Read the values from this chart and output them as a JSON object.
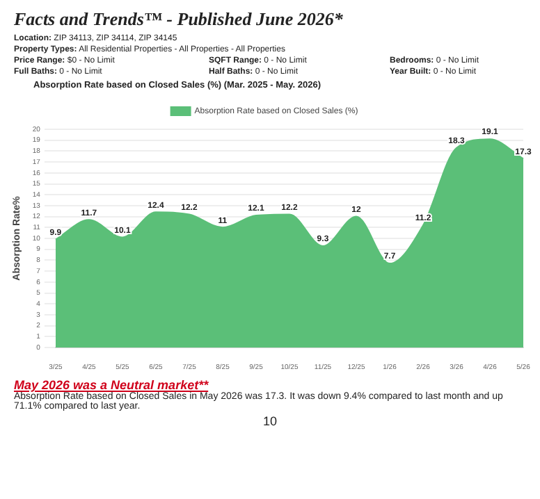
{
  "chart_data": {
    "type": "area",
    "title": "Facts and Trends™ - Published June 2026*",
    "subtitle": "Absorption Rate based on Closed Sales (%) (Mar. 2025 - May. 2026)",
    "ylabel": "Absorption Rate%",
    "annotations": [
      "Location: ZIP 34113, ZIP 34114, ZIP 34145",
      "Property Types: All Residential Properties - All Properties - All Properties",
      "Price Range: $0 - No Limit",
      "SQFT Range: 0 - No Limit",
      "Bedrooms: 0 - No Limit",
      "Full Baths: 0 - No Limit",
      "Half Baths: 0 - No Limit",
      "Year Built: 0 - No Limit",
      "May 2026 was a Neutral market**",
      "Absorption Rate based on Closed Sales in May 2026 was 17.3. It was down 9.4% compared to last month and up 71.1% compared to last year.",
      "10"
    ],
    "categories": [
      "3/25",
      "4/25",
      "5/25",
      "6/25",
      "7/25",
      "8/25",
      "9/25",
      "10/25",
      "11/25",
      "12/25",
      "1/26",
      "2/26",
      "3/26",
      "4/26",
      "5/26"
    ],
    "series": [
      {
        "name": "Absorption Rate based on Closed Sales (%)",
        "color": "#5bbf78",
        "values": [
          9.9,
          11.7,
          10.1,
          12.4,
          12.2,
          11,
          12.1,
          12.2,
          9.3,
          12,
          7.7,
          11.2,
          18.3,
          19.1,
          17.3
        ]
      }
    ],
    "ylim": [
      0,
      20
    ],
    "yticks": [
      0,
      1,
      2,
      3,
      4,
      5,
      6,
      7,
      8,
      9,
      10,
      11,
      12,
      13,
      14,
      15,
      16,
      17,
      18,
      19,
      20
    ],
    "grid": "y",
    "legend": "top",
    "data_labels": true
  }
}
